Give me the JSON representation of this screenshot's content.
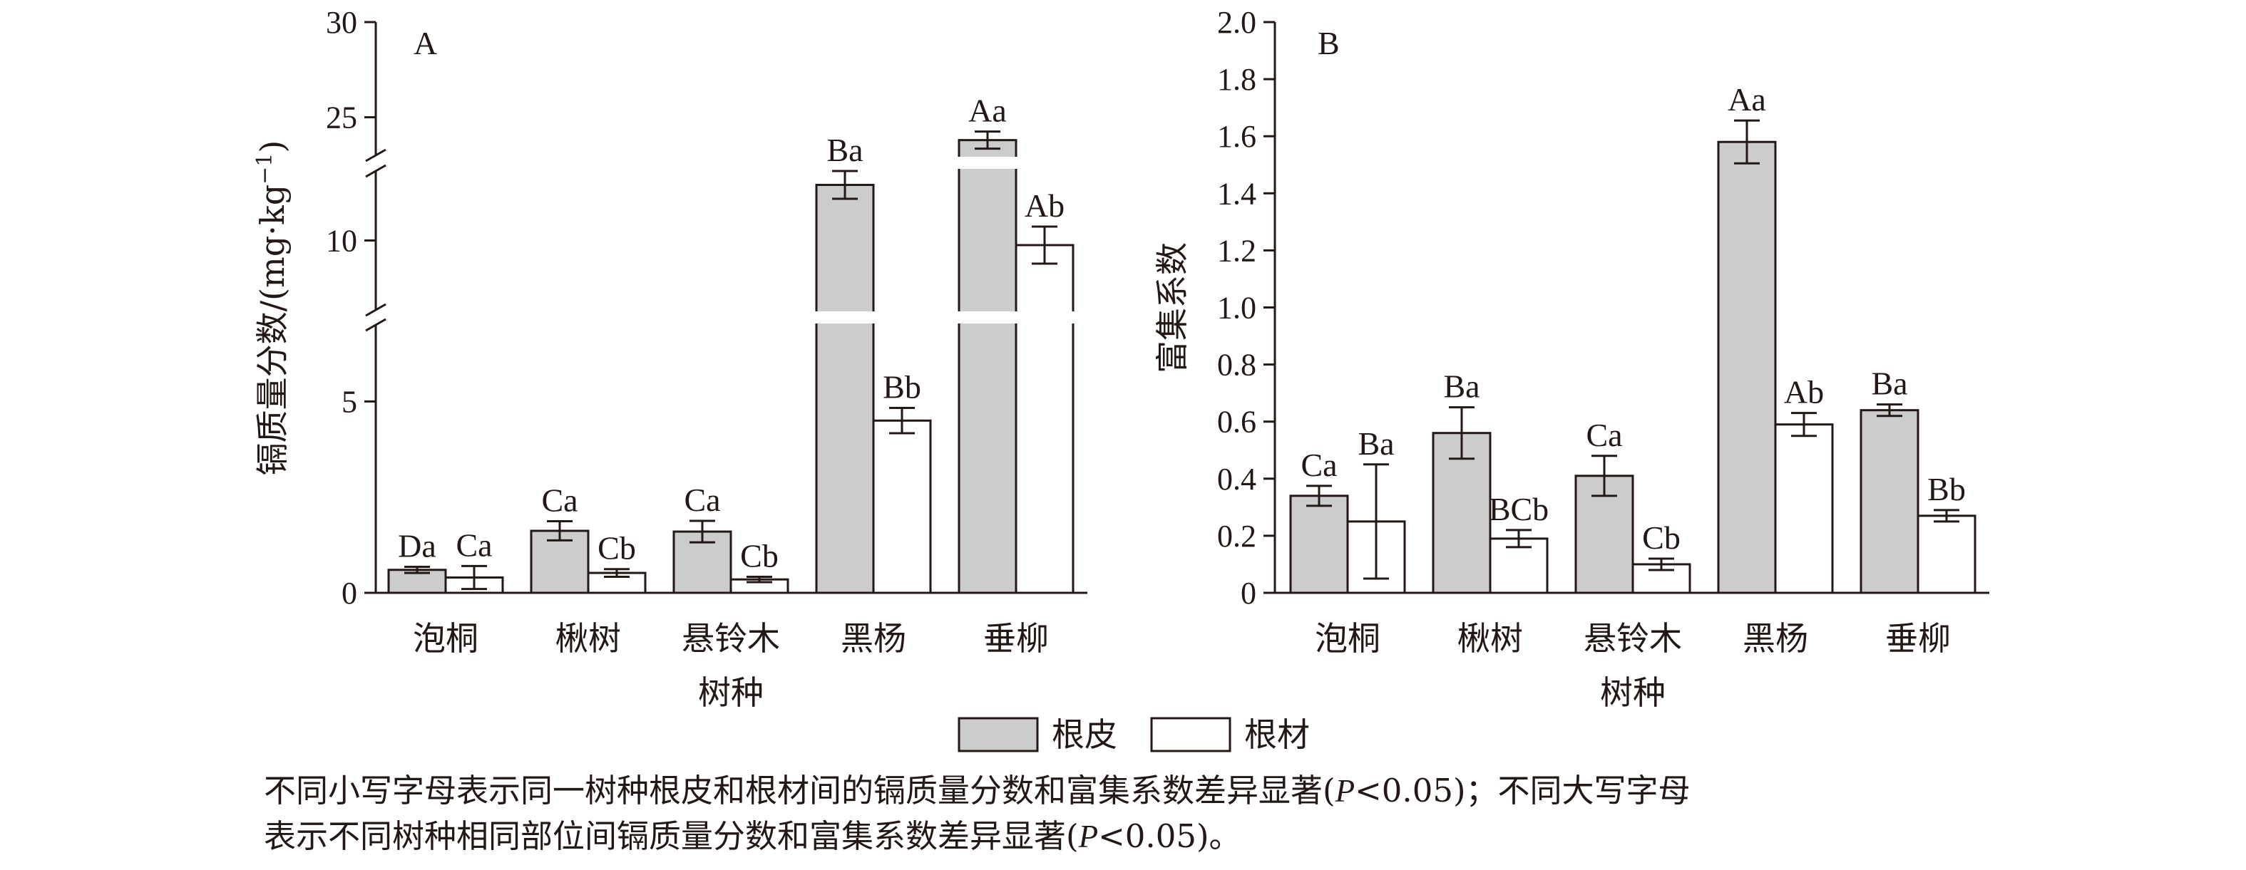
{
  "chart_data": [
    {
      "type": "bar",
      "panel": "A",
      "ylabel": "镉质量分数/(mg·kg⁻¹)",
      "ylabel_parts": {
        "main": "镉质量分数/(mg·kg",
        "sup": "−1",
        "close": ")"
      },
      "xlabel": "树种",
      "categories": [
        "泡桐",
        "楸树",
        "悬铃木",
        "黑杨",
        "垂柳"
      ],
      "axis_break": {
        "segments": [
          [
            0,
            7
          ],
          [
            8.5,
            11.5
          ],
          [
            23,
            30
          ]
        ]
      },
      "ylim": [
        0,
        30
      ],
      "yticks": [
        0,
        5,
        10,
        25,
        30
      ],
      "series": [
        {
          "name": "根皮",
          "color": "#cccccc",
          "values": [
            0.6,
            1.62,
            1.6,
            11.2,
            23.8
          ],
          "errors": [
            0.08,
            0.25,
            0.28,
            0.3,
            0.45
          ],
          "labels": [
            "Da",
            "Ca",
            "Ca",
            "Ba",
            "Aa"
          ]
        },
        {
          "name": "根材",
          "color": "#ffffff",
          "values": [
            0.4,
            0.52,
            0.35,
            4.5,
            9.9
          ],
          "errors": [
            0.3,
            0.1,
            0.07,
            0.33,
            0.4
          ],
          "labels": [
            "Ca",
            "Cb",
            "Cb",
            "Bb",
            "Ab"
          ]
        }
      ]
    },
    {
      "type": "bar",
      "panel": "B",
      "ylabel": "富集系数",
      "xlabel": "树种",
      "categories": [
        "泡桐",
        "楸树",
        "悬铃木",
        "黑杨",
        "垂柳"
      ],
      "ylim": [
        0,
        2.0
      ],
      "yticks": [
        0,
        0.2,
        0.4,
        0.6,
        0.8,
        1.0,
        1.2,
        1.4,
        1.6,
        1.8,
        2.0
      ],
      "series": [
        {
          "name": "根皮",
          "color": "#cccccc",
          "values": [
            0.34,
            0.56,
            0.41,
            1.58,
            0.64
          ],
          "errors": [
            0.035,
            0.09,
            0.07,
            0.075,
            0.02
          ],
          "labels": [
            "Ca",
            "Ba",
            "Ca",
            "Aa",
            "Ba"
          ]
        },
        {
          "name": "根材",
          "color": "#ffffff",
          "values": [
            0.25,
            0.19,
            0.1,
            0.59,
            0.27
          ],
          "errors": [
            0.2,
            0.03,
            0.02,
            0.04,
            0.02
          ],
          "labels": [
            "Ba",
            "BCb",
            "Cb",
            "Ab",
            "Bb"
          ]
        }
      ]
    }
  ],
  "legend": [
    {
      "label": "根皮",
      "color": "#cccccc"
    },
    {
      "label": "根材",
      "color": "#ffffff"
    }
  ],
  "note": {
    "line1_a": "不同小写字母表示同一树种根皮和根材间的镉质量分数和富集系数差异显著(",
    "p": "P",
    "line1_b": "<0.05)；不同大写字母",
    "line2_a": "表示不同树种相同部位间镉质量分数和富集系数差异显著(",
    "line2_b": "<0.05)。"
  }
}
